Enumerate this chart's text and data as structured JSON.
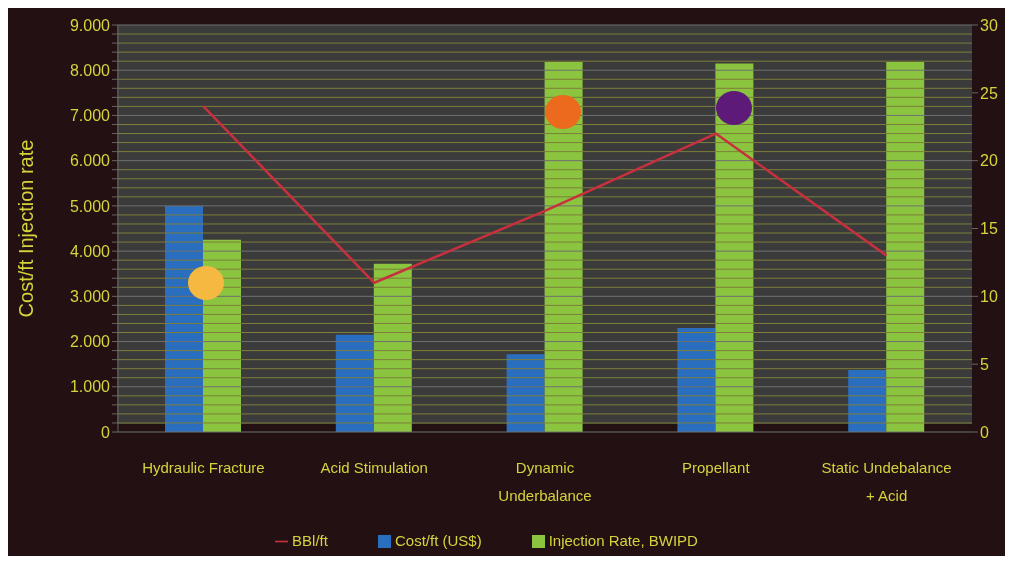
{
  "chart_data": {
    "type": "bar",
    "ylabel": "Cost/ft    Injection rate",
    "categories": [
      "Hydraulic Fracture",
      "Acid Stimulation",
      "Dynamic Underbalance",
      "Propellant",
      "Static Undebalance + Acid"
    ],
    "series": [
      {
        "name": "Cost/ft (US$)",
        "color": "#2a6ebf",
        "values": [
          5000,
          2150,
          1720,
          2300,
          1370
        ]
      },
      {
        "name": "Injection Rate, BWIPD",
        "color": "#8bc43f",
        "values": [
          4250,
          3720,
          8180,
          8150,
          8180
        ]
      },
      {
        "name": "BBl/ft",
        "type": "line",
        "axis": "y2",
        "color": "#c8303e",
        "values": [
          24,
          11,
          16.3,
          22,
          13
        ]
      }
    ],
    "ylim": [
      0,
      9000
    ],
    "yticks": [
      {
        "value": 0,
        "label": "0"
      },
      {
        "value": 200,
        "label": null
      },
      {
        "value": 400,
        "label": null
      },
      {
        "value": 600,
        "label": null
      },
      {
        "value": 800,
        "label": null
      },
      {
        "value": 1000,
        "label": "1.000"
      },
      {
        "value": 1200,
        "label": null
      },
      {
        "value": 1400,
        "label": null
      },
      {
        "value": 1600,
        "label": null
      },
      {
        "value": 1800,
        "label": null
      },
      {
        "value": 2000,
        "label": "2.000"
      },
      {
        "value": 2200,
        "label": null
      },
      {
        "value": 2400,
        "label": null
      },
      {
        "value": 2600,
        "label": null
      },
      {
        "value": 2800,
        "label": null
      },
      {
        "value": 3000,
        "label": "3.000"
      },
      {
        "value": 3200,
        "label": null
      },
      {
        "value": 3400,
        "label": null
      },
      {
        "value": 3600,
        "label": null
      },
      {
        "value": 3800,
        "label": null
      },
      {
        "value": 4000,
        "label": "4.000"
      },
      {
        "value": 4200,
        "label": null
      },
      {
        "value": 4400,
        "label": null
      },
      {
        "value": 4600,
        "label": null
      },
      {
        "value": 4800,
        "label": null
      },
      {
        "value": 5000,
        "label": "5.000"
      },
      {
        "value": 5200,
        "label": null
      },
      {
        "value": 5400,
        "label": null
      },
      {
        "value": 5600,
        "label": null
      },
      {
        "value": 5800,
        "label": null
      },
      {
        "value": 6000,
        "label": "6.000"
      },
      {
        "value": 6200,
        "label": null
      },
      {
        "value": 6400,
        "label": null
      },
      {
        "value": 6600,
        "label": null
      },
      {
        "value": 6800,
        "label": null
      },
      {
        "value": 7000,
        "label": "7.000"
      },
      {
        "value": 7200,
        "label": null
      },
      {
        "value": 7400,
        "label": null
      },
      {
        "value": 7600,
        "label": null
      },
      {
        "value": 7800,
        "label": null
      },
      {
        "value": 8000,
        "label": "8.000"
      },
      {
        "value": 8200,
        "label": null
      },
      {
        "value": 8400,
        "label": null
      },
      {
        "value": 8600,
        "label": null
      },
      {
        "value": 8800,
        "label": null
      },
      {
        "value": 9000,
        "label": "9.000"
      }
    ],
    "y2lim": [
      0,
      30
    ],
    "y2ticks": [
      0,
      5,
      10,
      15,
      20,
      25,
      30
    ],
    "grid": "y",
    "legend": "bottom",
    "marker": "none",
    "line_style": "solid"
  }
}
